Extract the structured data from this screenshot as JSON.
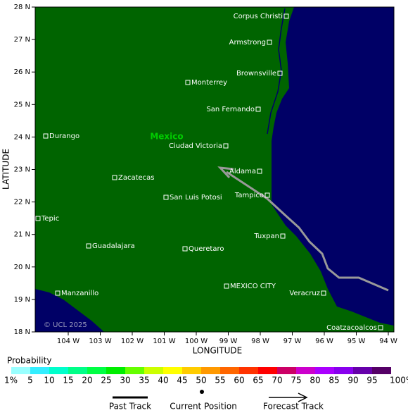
{
  "map": {
    "x_axis_title": "LONGITUDE",
    "y_axis_title": "LATITUDE",
    "xticks": [
      "104 W",
      "103 W",
      "102 W",
      "101 W",
      "100 W",
      "99 W",
      "98 W",
      "97 W",
      "96 W",
      "95 W",
      "94 W"
    ],
    "yticks": [
      "28 N",
      "27 N",
      "26 N",
      "25 N",
      "24 N",
      "23 N",
      "22 N",
      "21 N",
      "20 N",
      "19 N",
      "18 N"
    ],
    "country": "Mexico",
    "credit": "© UCL 2025",
    "land_color": "#006400",
    "ocean_color": "#000066",
    "track_color": "#999999",
    "cities": [
      "Corpus Christi",
      "Armstrong",
      "Brownsville",
      "Monterrey",
      "San Fernando",
      "Durango",
      "Ciudad Victoria",
      "Aldama",
      "Zacatecas",
      "San Luis Potosi",
      "Tampico",
      "Tepic",
      "Tuxpan",
      "Guadalajara",
      "Queretaro",
      "MEXICO CITY",
      "Manzanillo",
      "Veracruz",
      "Coatzacoalcos"
    ]
  },
  "legend": {
    "title": "Probability",
    "labels": [
      "1%",
      "5",
      "10",
      "15",
      "20",
      "25",
      "30",
      "35",
      "40",
      "45",
      "50",
      "55",
      "60",
      "65",
      "70",
      "75",
      "80",
      "85",
      "90",
      "95",
      "100%"
    ],
    "colors": [
      "#99ffff",
      "#33eeff",
      "#00ffcc",
      "#00ff88",
      "#00ff44",
      "#00ee00",
      "#66ff00",
      "#ccff00",
      "#ffff00",
      "#ffcc00",
      "#ff9900",
      "#ff6600",
      "#ff3300",
      "#ff0000",
      "#cc0066",
      "#cc00cc",
      "#aa00ff",
      "#8800ee",
      "#6600aa",
      "#550066"
    ],
    "items": [
      "Past Track",
      "Current Position",
      "Forecast Track"
    ]
  }
}
